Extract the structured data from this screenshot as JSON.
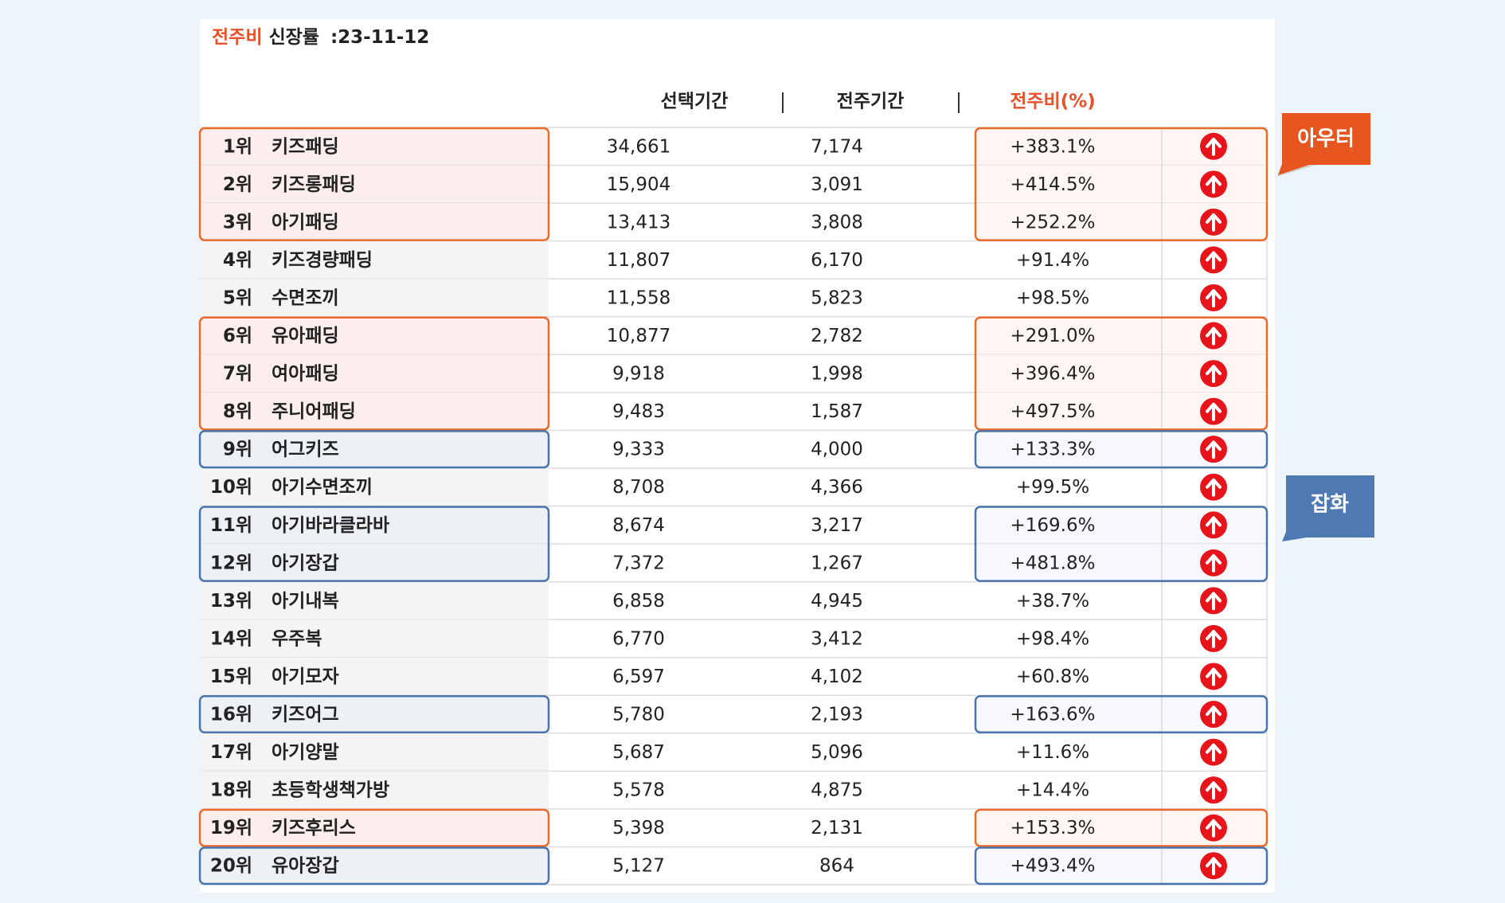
{
  "header": {
    "highlight": "전주비",
    "label": "신장률",
    "date": ":23-11-12"
  },
  "table": {
    "columns": [
      "선택기간",
      "전주기간",
      "전주비(%)"
    ],
    "rows": [
      [
        "1위",
        "키즈패딩",
        "34,661",
        "7,174",
        "+383.1%"
      ],
      [
        "2위",
        "키즈롱패딩",
        "15,904",
        "3,091",
        "+414.5%"
      ],
      [
        "3위",
        "아기패딩",
        "13,413",
        "3,808",
        "+252.2%"
      ],
      [
        "4위",
        "키즈경량패딩",
        "11,807",
        "6,170",
        "+91.4%"
      ],
      [
        "5위",
        "수면조끼",
        "11,558",
        "5,823",
        "+98.5%"
      ],
      [
        "6위",
        "유아패딩",
        "10,877",
        "2,782",
        "+291.0%"
      ],
      [
        "7위",
        "여아패딩",
        "9,918",
        "1,998",
        "+396.4%"
      ],
      [
        "8위",
        "주니어패딩",
        "9,483",
        "1,587",
        "+497.5%"
      ],
      [
        "9위",
        "어그키즈",
        "9,333",
        "4,000",
        "+133.3%"
      ],
      [
        "10위",
        "아기수면조끼",
        "8,708",
        "4,366",
        "+99.5%"
      ],
      [
        "11위",
        "아기바라클라바",
        "8,674",
        "3,217",
        "+169.6%"
      ],
      [
        "12위",
        "아기장갑",
        "7,372",
        "1,267",
        "+481.8%"
      ],
      [
        "13위",
        "아기내복",
        "6,858",
        "4,945",
        "+38.7%"
      ],
      [
        "14위",
        "우주복",
        "6,770",
        "3,412",
        "+98.4%"
      ],
      [
        "15위",
        "아기모자",
        "6,597",
        "4,102",
        "+60.8%"
      ],
      [
        "16위",
        "키즈어그",
        "5,780",
        "2,193",
        "+163.6%"
      ],
      [
        "17위",
        "아기양말",
        "5,687",
        "5,096",
        "+11.6%"
      ],
      [
        "18위",
        "초등학생책가방",
        "5,578",
        "4,875",
        "+14.4%"
      ],
      [
        "19위",
        "키즈후리스",
        "5,398",
        "2,131",
        "+153.3%"
      ],
      [
        "20위",
        "유아장갑",
        "5,127",
        "864",
        "+493.4%"
      ]
    ]
  },
  "callouts": [
    "아우터",
    "잡화"
  ]
}
